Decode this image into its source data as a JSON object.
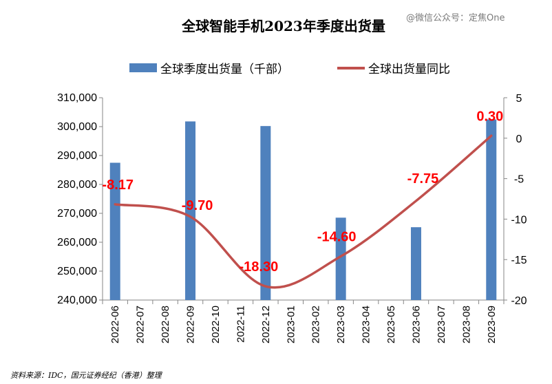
{
  "title": "全球智能手机2023年季度出货量",
  "watermark": "@微信公众号：定焦One",
  "source": "资料来源：IDC，国元证券经纪（香港）整理",
  "colors": {
    "bar": "#4f81bd",
    "line": "#c0504d",
    "label": "#ff0000"
  },
  "chart_data": {
    "type": "bar+line",
    "categories": [
      "2022-06",
      "2022-07",
      "2022-08",
      "2022-09",
      "2022-10",
      "2022-11",
      "2022-12",
      "2023-01",
      "2023-02",
      "2023-03",
      "2023-04",
      "2023-05",
      "2023-06",
      "2023-07",
      "2023-08",
      "2023-09"
    ],
    "series": [
      {
        "name": "全球季度出货量（千部）",
        "type": "bar",
        "axis": "left",
        "values": [
          287500,
          null,
          null,
          301800,
          null,
          null,
          300200,
          null,
          null,
          268500,
          null,
          null,
          265200,
          null,
          null,
          302500
        ]
      },
      {
        "name": "全球出货量同比",
        "type": "line",
        "axis": "right",
        "values": [
          -8.17,
          null,
          null,
          -9.7,
          null,
          null,
          -18.3,
          null,
          null,
          -14.6,
          null,
          null,
          -7.75,
          null,
          null,
          0.3
        ],
        "labels": [
          "-8.17",
          "-9.70",
          "-18.30",
          "-14.60",
          "-7.75",
          "0.30"
        ]
      }
    ],
    "y_left": {
      "min": 240000,
      "max": 310000,
      "step": 10000,
      "ticks": [
        "240,000",
        "250,000",
        "260,000",
        "270,000",
        "280,000",
        "290,000",
        "300,000",
        "310,000"
      ]
    },
    "y_right": {
      "min": -20,
      "max": 5,
      "step": 5,
      "ticks": [
        "-20",
        "-15",
        "-10",
        "-5",
        "0",
        "5"
      ]
    },
    "legend_position": "top",
    "grid": false
  }
}
